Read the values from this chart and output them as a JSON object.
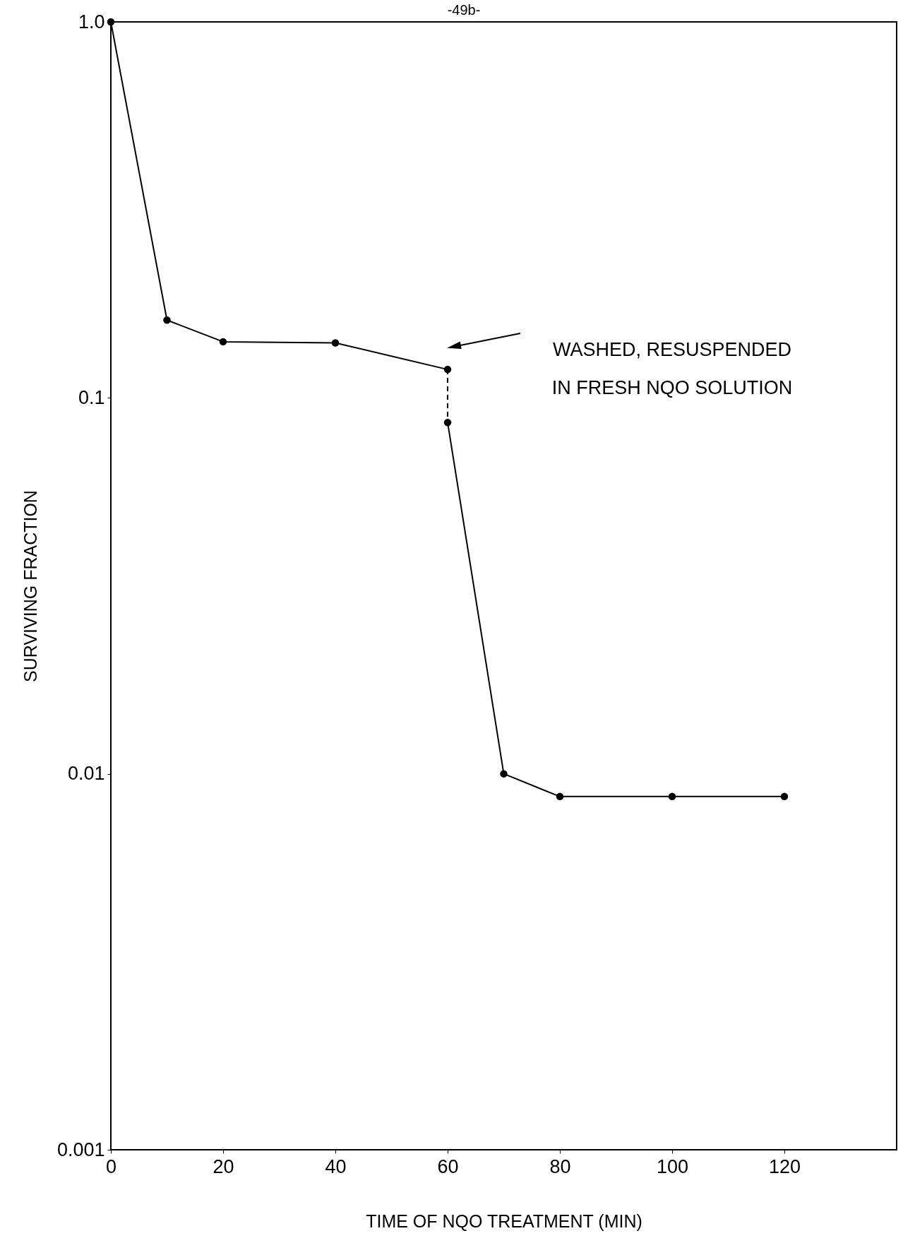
{
  "chart_data": {
    "type": "line",
    "xlabel": "TIME OF NQO TREATMENT (MIN)",
    "ylabel": "SURVIVING FRACTION",
    "annotations": [
      "-49b-",
      "WASHED, RESUSPENDED\nIN FRESH NQO SOLUTION"
    ],
    "series": [
      {
        "x": [
          0,
          10,
          20,
          40,
          60
        ],
        "values": [
          1.0,
          0.161,
          0.141,
          0.14,
          0.119
        ],
        "color": "#000000",
        "marker": "circle",
        "line_style": "solid"
      },
      {
        "x": [
          60,
          60
        ],
        "values": [
          0.119,
          0.086
        ],
        "color": "#000000",
        "line_style": "dashed"
      },
      {
        "x": [
          60,
          70,
          80,
          100,
          120
        ],
        "values": [
          0.086,
          0.01,
          0.0087,
          0.0087,
          0.0087
        ],
        "color": "#000000",
        "marker": "circle",
        "line_style": "solid"
      }
    ],
    "xlim": [
      0,
      140
    ],
    "xticks": [
      0,
      20,
      40,
      60,
      80,
      100,
      120
    ],
    "ylim": [
      0.001,
      1.0
    ],
    "yticks": [
      {
        "value": 1,
        "label": "1.0"
      },
      0.1,
      0.01,
      0.001
    ],
    "log": true,
    "grid": false
  }
}
